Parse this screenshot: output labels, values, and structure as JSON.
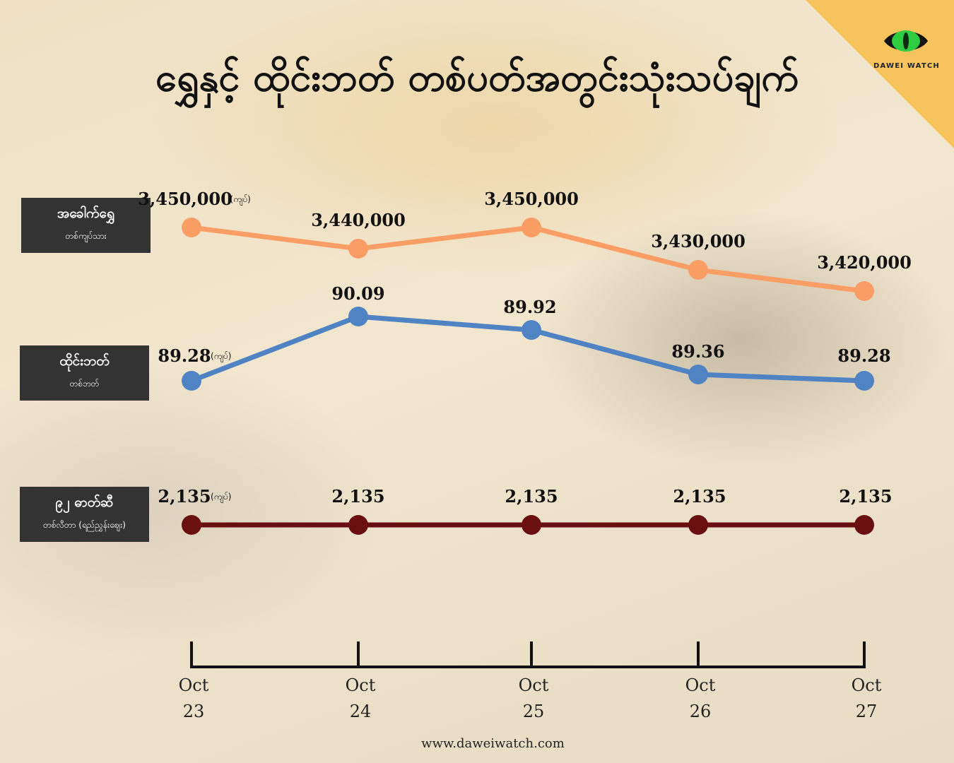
{
  "title": "ရွှေနှင့် ထိုင်းဘတ် တစ်ပတ်အတွင်းသုံးသပ်ချက်",
  "brand": "DAWEI WATCH",
  "website": "www.daweiwatch.com",
  "colors": {
    "gold": "#fb9e66",
    "baht": "#4f83c3",
    "fuel": "#6a0f10",
    "accent": "#f7c35d"
  },
  "row_labels": [
    {
      "main": "အခေါက်ရွှေ",
      "sub": "တစ်ကျပ်သား"
    },
    {
      "main": "ထိုင်းဘတ်",
      "sub": "တစ်ဘတ်"
    },
    {
      "main": "၉၂ ဓာတ်ဆီ",
      "sub": "တစ်လီတာ (ရည်ညွှန်းဈေး)"
    }
  ],
  "chart_data": {
    "type": "line",
    "categories": [
      [
        "Oct",
        "23"
      ],
      [
        "Oct",
        "24"
      ],
      [
        "Oct",
        "25"
      ],
      [
        "Oct",
        "26"
      ],
      [
        "Oct",
        "27"
      ]
    ],
    "unit_label": "(ကျပ်)",
    "series": [
      {
        "name": "အခေါက်ရွှေ",
        "values": [
          3450000,
          3440000,
          3450000,
          3430000,
          3420000
        ],
        "labels": [
          "3,450,000",
          "3,440,000",
          "3,450,000",
          "3,430,000",
          "3,420,000"
        ]
      },
      {
        "name": "ထိုင်းဘတ်",
        "values": [
          89.28,
          90.09,
          89.92,
          89.36,
          89.28
        ],
        "labels": [
          "89.28",
          "90.09",
          "89.92",
          "89.36",
          "89.28"
        ]
      },
      {
        "name": "၉၂ ဓာတ်ဆီ",
        "values": [
          2135,
          2135,
          2135,
          2135,
          2135
        ],
        "labels": [
          "2,135",
          "2,135",
          "2,135",
          "2,135",
          "2,135"
        ]
      }
    ]
  }
}
